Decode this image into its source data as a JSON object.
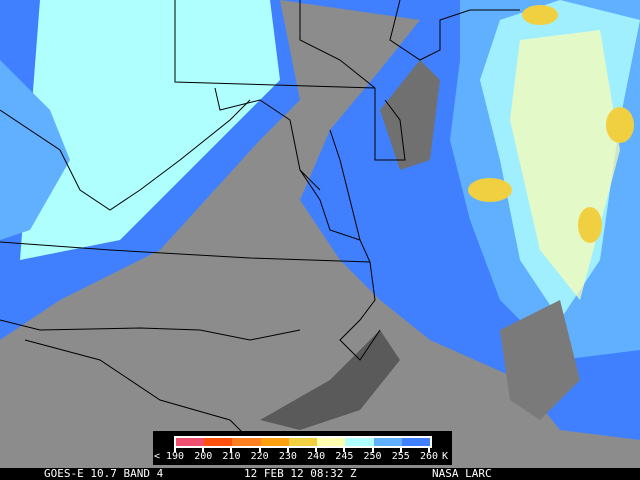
{
  "image": {
    "description_type": "satellite infrared imagery",
    "background_color": "#8c8c8c"
  },
  "legend": {
    "colors": [
      "#f05070",
      "#ff5010",
      "#ff8020",
      "#ffa010",
      "#f0d040",
      "#ffffb0",
      "#b0ffff",
      "#60b0ff",
      "#4080ff"
    ],
    "labels": [
      "< 190",
      "200",
      "210",
      "220",
      "230",
      "240",
      "245",
      "250",
      "255",
      "260",
      "K"
    ]
  },
  "footer": {
    "satellite": "GOES-E 10.7 BAND 4",
    "datetime": "12 FEB 12 08:32 Z",
    "credit": "NASA LARC"
  }
}
